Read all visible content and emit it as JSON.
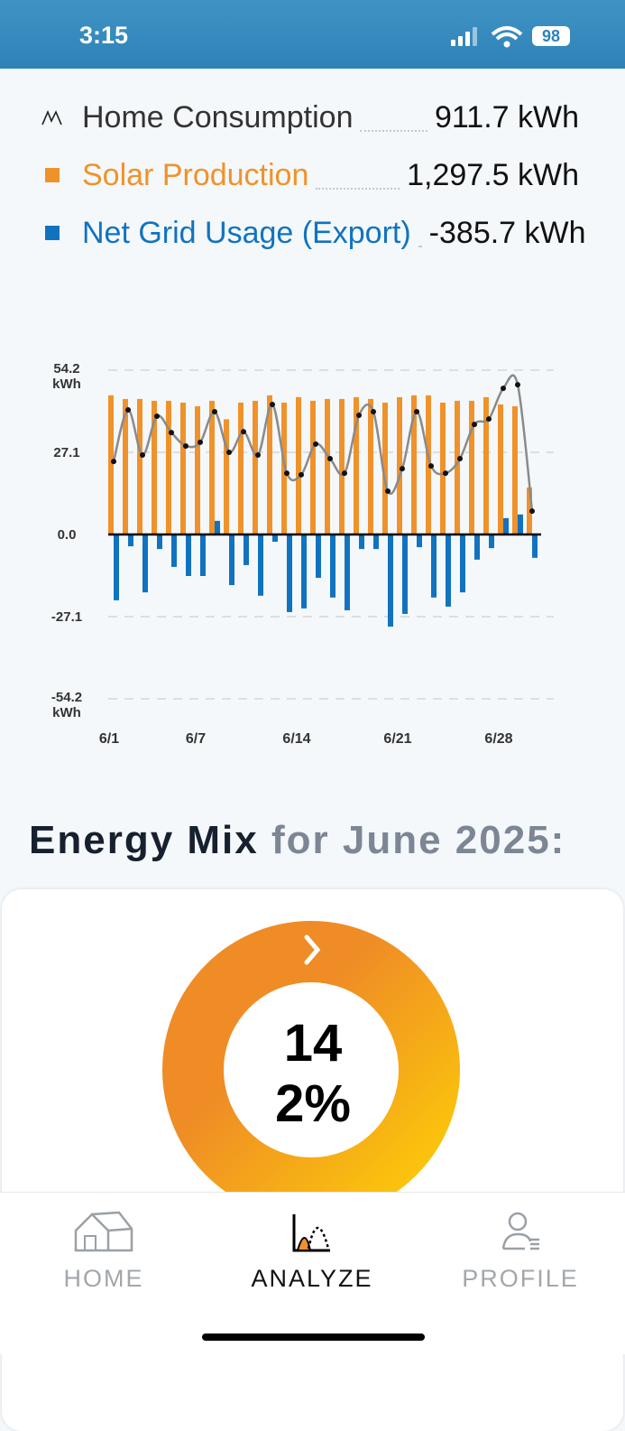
{
  "status_bar": {
    "time": "3:15",
    "battery": "98"
  },
  "chart_data": {
    "type": "bar",
    "series": [
      {
        "name": "Home Consumption",
        "type": "line",
        "color": "#8a8a8a",
        "total": "911.7 kWh",
        "values": [
          24.1,
          41.1,
          26.2,
          39.0,
          33.6,
          29.2,
          30.4,
          40.5,
          27.1,
          33.9,
          26.2,
          42.9,
          20.2,
          19.7,
          29.8,
          25.0,
          20.2,
          39.3,
          40.5,
          14.3,
          21.7,
          40.5,
          22.6,
          20.2,
          25.0,
          36.3,
          38.1,
          48.2,
          49.4,
          7.7
        ]
      },
      {
        "name": "Solar Production",
        "type": "bar",
        "color": "#f0922b",
        "total": "1,297.5 kWh",
        "values": [
          45.9,
          44.7,
          44.7,
          44.1,
          44.1,
          43.5,
          42.3,
          44.1,
          38.0,
          43.5,
          44.1,
          45.9,
          43.5,
          45.3,
          44.1,
          44.7,
          44.7,
          45.3,
          44.7,
          43.5,
          45.3,
          45.9,
          45.9,
          43.5,
          44.1,
          44.1,
          45.3,
          42.9,
          42.3,
          15.5
        ]
      },
      {
        "name": "Net Grid Usage (Export)",
        "type": "bar",
        "color": "#1173c0",
        "total": "-385.7 kWh",
        "values": [
          -21.7,
          -3.9,
          -19.1,
          -4.8,
          -10.7,
          -13.7,
          -13.7,
          4.5,
          -16.7,
          -10.1,
          -20.2,
          -2.4,
          -25.6,
          -24.4,
          -14.3,
          -20.8,
          -25.0,
          -4.8,
          -4.8,
          -30.4,
          -26.2,
          -4.2,
          -20.8,
          -23.8,
          -19.1,
          -8.3,
          -4.5,
          5.4,
          6.6,
          -7.7
        ]
      }
    ],
    "categories": [
      "6/1",
      null,
      null,
      null,
      null,
      null,
      "6/7",
      null,
      null,
      null,
      null,
      null,
      null,
      "6/14",
      null,
      null,
      null,
      null,
      null,
      null,
      "6/21",
      null,
      null,
      null,
      null,
      null,
      null,
      "6/28",
      null,
      null
    ],
    "ylim": [
      -54.2,
      54.2
    ],
    "yticks": [
      {
        "value": 54.2,
        "label": "54.2 kWh"
      },
      27.1,
      {
        "value": 0,
        "label": "0.0"
      },
      -27.1,
      {
        "value": -54.2,
        "label": "-54.2 kWh"
      }
    ],
    "grid": true
  },
  "energy_mix": {
    "title": "Energy Mix",
    "subtitle": "for June 2025:",
    "donut_lines": [
      "14",
      "2%"
    ]
  },
  "nav": [
    "HOME",
    "ANALYZE",
    "PROFILE"
  ]
}
